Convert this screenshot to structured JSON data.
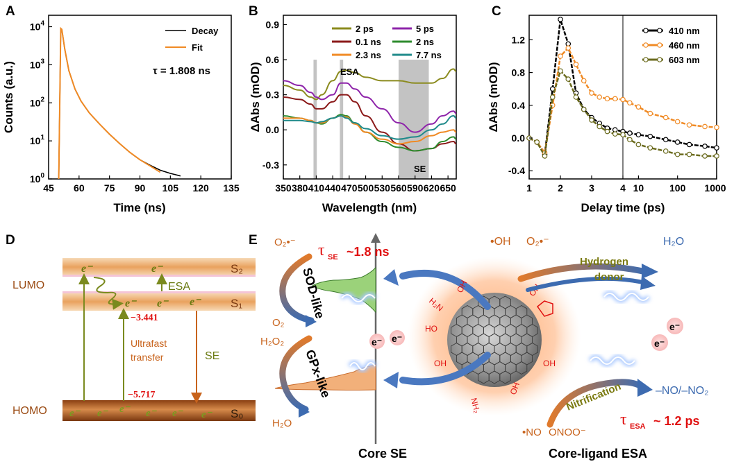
{
  "panels": {
    "A": "A",
    "B": "B",
    "C": "C",
    "D": "D",
    "E": "E"
  },
  "chart_data": [
    {
      "panel": "A",
      "type": "line",
      "xlabel": "Time (ns)",
      "ylabel": "Counts (a.u.)",
      "yscale": "log",
      "xlim": [
        45,
        135
      ],
      "ylim": [
        1,
        20000
      ],
      "xticks": [
        "45",
        "60",
        "75",
        "90",
        "105",
        "120",
        "135"
      ],
      "xtick_values": [
        45,
        60,
        75,
        90,
        105,
        120,
        135
      ],
      "yticks": [
        {
          "base": "10",
          "exp": "0",
          "value": 1
        },
        {
          "base": "10",
          "exp": "1",
          "value": 10
        },
        {
          "base": "10",
          "exp": "2",
          "value": 100
        },
        {
          "base": "10",
          "exp": "3",
          "value": 1000
        },
        {
          "base": "10",
          "exp": "4",
          "value": 10000
        }
      ],
      "legend": [
        "Decay",
        "Fit"
      ],
      "colors": [
        "#000000",
        "#f08a24"
      ],
      "annotation": "τ = 1.808 ns",
      "series": [
        {
          "name": "Decay",
          "x": [
            50,
            51,
            51.5,
            53,
            55,
            58,
            61,
            65,
            70,
            75,
            80,
            85,
            90,
            95,
            100,
            105,
            110
          ],
          "y": [
            1,
            9000,
            8500,
            2500,
            700,
            230,
            110,
            55,
            28,
            15,
            8.5,
            5,
            3.2,
            2.3,
            1.7,
            1.4,
            1.2
          ]
        },
        {
          "name": "Fit",
          "x": [
            50,
            51,
            51.5,
            53,
            55,
            58,
            61,
            65,
            70,
            75,
            80,
            85,
            90,
            95,
            100
          ],
          "y": [
            1,
            9000,
            8500,
            2500,
            700,
            230,
            110,
            55,
            28,
            15,
            8.5,
            5,
            3.2,
            2.2,
            1.5
          ]
        }
      ]
    },
    {
      "panel": "B",
      "type": "line",
      "xlabel": "Wavelength (nm)",
      "ylabel": "ΔAbs (mOD)",
      "xlim": [
        350,
        665
      ],
      "ylim": [
        -0.42,
        0.98
      ],
      "xticks": [
        "350",
        "380",
        "410",
        "440",
        "470",
        "500",
        "530",
        "560",
        "590",
        "620",
        "650"
      ],
      "xtick_values": [
        350,
        380,
        410,
        440,
        470,
        500,
        530,
        560,
        590,
        620,
        650
      ],
      "yticks": [
        "-0.3",
        "0.0",
        "0.3",
        "0.6",
        "0.9"
      ],
      "ytick_values": [
        -0.3,
        0,
        0.3,
        0.6,
        0.9
      ],
      "bands": [
        [
          405,
          411
        ],
        [
          453,
          459
        ],
        [
          560,
          615
        ]
      ],
      "band_labels": [
        "ESA",
        "SE"
      ],
      "series": [
        {
          "name": "2 ps",
          "color": "#8b8b1e",
          "x": [
            350,
            380,
            400,
            410,
            420,
            440,
            455,
            465,
            480,
            500,
            530,
            560,
            590,
            620,
            640,
            660,
            665
          ],
          "y": [
            0.38,
            0.34,
            0.28,
            0.26,
            0.3,
            0.42,
            0.5,
            0.51,
            0.49,
            0.45,
            0.42,
            0.42,
            0.4,
            0.4,
            0.44,
            0.52,
            0.5
          ]
        },
        {
          "name": "5 ps",
          "color": "#8e24aa",
          "x": [
            350,
            380,
            400,
            410,
            420,
            440,
            455,
            465,
            480,
            500,
            530,
            560,
            590,
            620,
            640,
            660,
            665
          ],
          "y": [
            0.42,
            0.38,
            0.32,
            0.28,
            0.26,
            0.3,
            0.4,
            0.4,
            0.35,
            0.28,
            0.18,
            0.06,
            -0.02,
            0.05,
            0.12,
            0.16,
            0.14
          ]
        },
        {
          "name": "0.1 ns",
          "color": "#8b1a1a",
          "x": [
            350,
            380,
            400,
            410,
            420,
            440,
            455,
            465,
            480,
            500,
            530,
            560,
            590,
            620,
            640,
            660,
            665
          ],
          "y": [
            0.28,
            0.26,
            0.22,
            0.18,
            0.18,
            0.24,
            0.3,
            0.3,
            0.24,
            0.12,
            -0.02,
            -0.12,
            -0.18,
            -0.16,
            -0.12,
            -0.1,
            -0.12
          ]
        },
        {
          "name": "2 ns",
          "color": "#2e8b2e",
          "x": [
            350,
            380,
            400,
            410,
            420,
            440,
            455,
            465,
            480,
            500,
            530,
            560,
            590,
            620,
            640,
            660,
            665
          ],
          "y": [
            0.12,
            0.1,
            0.08,
            0.06,
            0.05,
            0.1,
            0.13,
            0.12,
            0.06,
            -0.02,
            -0.1,
            -0.15,
            -0.18,
            -0.16,
            -0.1,
            -0.06,
            -0.08
          ]
        },
        {
          "name": "2.3 ns",
          "color": "#f08a24",
          "x": [
            350,
            380,
            400,
            410,
            420,
            440,
            455,
            465,
            480,
            500,
            530,
            560,
            590,
            620,
            640,
            660,
            665
          ],
          "y": [
            0.1,
            0.1,
            0.08,
            0.06,
            0.06,
            0.1,
            0.12,
            0.11,
            0.05,
            -0.02,
            -0.08,
            -0.12,
            -0.1,
            -0.05,
            -0.02,
            0,
            -0.02
          ]
        },
        {
          "name": "7.7 ns",
          "color": "#1f8a8a",
          "x": [
            350,
            380,
            400,
            410,
            420,
            440,
            455,
            465,
            480,
            500,
            530,
            560,
            590,
            620,
            640,
            660,
            665
          ],
          "y": [
            0.08,
            0.08,
            0.07,
            0.06,
            0.07,
            0.1,
            0.12,
            0.1,
            0.06,
            0.01,
            -0.05,
            -0.08,
            -0.06,
            0,
            0.05,
            0.12,
            0.1
          ]
        }
      ]
    },
    {
      "panel": "C",
      "type": "line",
      "xlabel": "Delay time (ps)",
      "ylabel": "ΔAbs (mOD)",
      "xscale": "linear-then-log",
      "xbreak": 4,
      "xlim": [
        1,
        1000
      ],
      "ylim": [
        -0.5,
        1.5
      ],
      "xticks_linear": [
        "1",
        "2",
        "3",
        "4"
      ],
      "xtick_values_linear": [
        1,
        2,
        3,
        4
      ],
      "xticks_log": [
        "10",
        "100",
        "1000"
      ],
      "xtick_values_log": [
        10,
        100,
        1000
      ],
      "yticks": [
        "-0.4",
        "0.0",
        "0.4",
        "0.8",
        "1.2"
      ],
      "ytick_values": [
        -0.4,
        0,
        0.4,
        0.8,
        1.2
      ],
      "series": [
        {
          "name": "410 nm",
          "color": "#000000",
          "fill": "#ffffff",
          "x": [
            1,
            1.25,
            1.5,
            1.75,
            2,
            2.25,
            2.5,
            2.75,
            3,
            3.25,
            3.5,
            3.75,
            4,
            6,
            10,
            20,
            50,
            100,
            200,
            500,
            1000
          ],
          "y": [
            0,
            -0.05,
            -0.2,
            0.6,
            1.45,
            1.15,
            0.55,
            0.35,
            0.25,
            0.18,
            0.12,
            0.1,
            0.08,
            0.06,
            0.04,
            0.02,
            -0.02,
            -0.05,
            -0.08,
            -0.1,
            -0.12
          ]
        },
        {
          "name": "460 nm",
          "color": "#f08a24",
          "fill": "#ffffff",
          "x": [
            1,
            1.25,
            1.5,
            1.75,
            2,
            2.25,
            2.5,
            2.75,
            3,
            3.25,
            3.5,
            3.75,
            4,
            6,
            10,
            20,
            50,
            100,
            200,
            500,
            1000
          ],
          "y": [
            0,
            -0.05,
            -0.18,
            0.4,
            1.0,
            1.1,
            0.9,
            0.7,
            0.55,
            0.5,
            0.48,
            0.48,
            0.47,
            0.43,
            0.38,
            0.3,
            0.25,
            0.2,
            0.16,
            0.14,
            0.13
          ]
        },
        {
          "name": "603 nm",
          "color": "#6b6b1e",
          "fill": "#ffffff",
          "x": [
            1,
            1.25,
            1.5,
            1.75,
            2,
            2.25,
            2.5,
            2.75,
            3,
            3.25,
            3.5,
            3.75,
            4,
            6,
            10,
            20,
            50,
            100,
            200,
            500,
            1000
          ],
          "y": [
            0,
            -0.05,
            -0.22,
            0.5,
            0.82,
            0.72,
            0.5,
            0.35,
            0.22,
            0.14,
            0.08,
            0.05,
            0.04,
            -0.02,
            -0.08,
            -0.12,
            -0.16,
            -0.2,
            -0.2,
            -0.22,
            -0.22
          ]
        }
      ]
    }
  ],
  "panel_d": {
    "lumo_label": "LUMO",
    "homo_label": "HOMO",
    "s2": "S₂",
    "s1": "S₁",
    "s0": "S₀",
    "electron": "e⁻",
    "esa": "ESA",
    "se": "SE",
    "energy_lumo": "−3.441",
    "energy_homo": "−5.717",
    "transfer_line1": "Ultrafast",
    "transfer_line2": "transfer"
  },
  "panel_e": {
    "o2_radical": "O₂•⁻",
    "sod_like": "SOD-like",
    "o2": "O₂",
    "h2o2": "H₂O₂",
    "gpx_like": "GPx-like",
    "h2o_left": "H₂O",
    "tau_se_symbol": "τ",
    "tau_se_sub": "SE",
    "tau_se_value": "~1.8 ns",
    "electron": "e⁻",
    "oh_radical": "•OH",
    "o2_radical_right": "O₂•⁻",
    "h2o_right": "H₂O",
    "hydrogen": "Hydrogen",
    "donor": "donor",
    "nitrification": "Nitrification",
    "no_products": "–NO/–NO₂",
    "no_radical": "•NO",
    "onoo": "ONOO⁻",
    "tau_esa_symbol": "τ",
    "tau_esa_sub": "ESA",
    "tau_esa_value": "~ 1.2 ps",
    "core_se": "Core SE",
    "core_ligand_esa": "Core-ligand ESA",
    "groups": {
      "nh2": "NH₂",
      "h2n": "H₂N",
      "oh": "OH",
      "ho": "HO"
    }
  }
}
